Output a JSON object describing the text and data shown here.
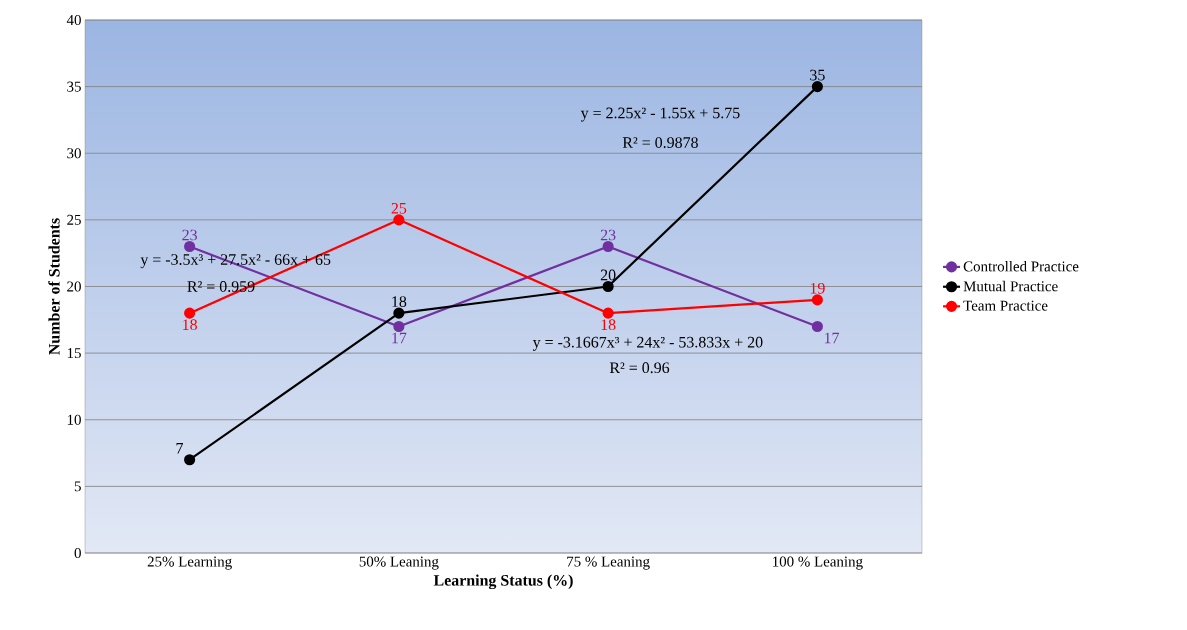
{
  "chart_data": {
    "type": "line",
    "xlabel": "Learning Status (%)",
    "ylabel": "Number of Students",
    "categories": [
      "25% Learning",
      "50% Leaning",
      "75 % Leaning",
      "100 % Leaning"
    ],
    "series": [
      {
        "name": "Controlled Practice",
        "color": "#7030a0",
        "values": [
          23,
          17,
          23,
          17
        ]
      },
      {
        "name": "Mutual Practice",
        "color": "#000000",
        "values": [
          7,
          18,
          20,
          35
        ]
      },
      {
        "name": "Team Practice",
        "color": "#ff0000",
        "values": [
          18,
          25,
          18,
          19
        ]
      }
    ],
    "ylim": [
      0,
      40
    ],
    "yticks": [
      0,
      5,
      10,
      15,
      20,
      25,
      30,
      35,
      40
    ],
    "grid": "y",
    "legend": "right",
    "marker": "circle",
    "line_style": "solid",
    "data_labels": true,
    "annotations": [
      "y = -3.5x³ + 27.5x² - 66x + 65",
      "R² = 0.959",
      "y = 2.25x² - 1.55x + 5.75",
      "R² = 0.9878",
      "y = -3.1667x³ + 24x² - 53.833x + 20",
      "R² = 0.96"
    ]
  }
}
